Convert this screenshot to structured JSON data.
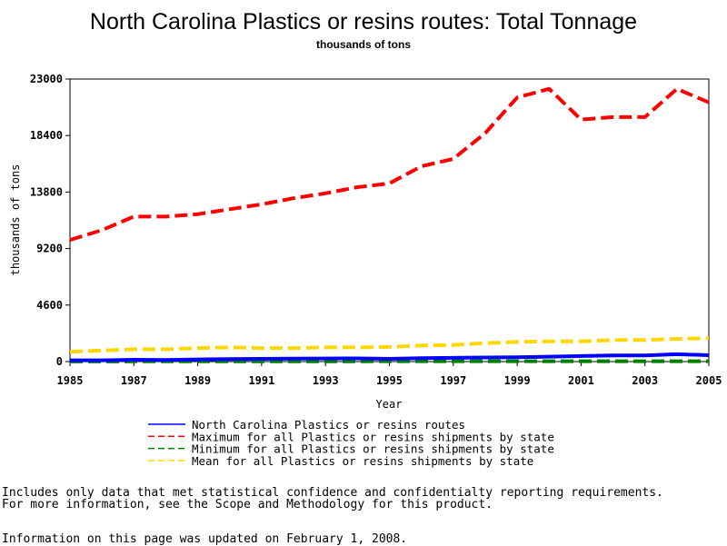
{
  "chart_data": {
    "type": "line",
    "title": "North Carolina Plastics or resins routes: Total Tonnage",
    "subtitle": "thousands of tons",
    "xlabel": "Year",
    "ylabel": "thousands of tons",
    "x": [
      1985,
      1986,
      1987,
      1988,
      1989,
      1990,
      1991,
      1992,
      1993,
      1994,
      1995,
      1996,
      1997,
      1998,
      1999,
      2000,
      2001,
      2002,
      2003,
      2004,
      2005
    ],
    "xticks": [
      "1985",
      "1987",
      "1989",
      "1991",
      "1993",
      "1995",
      "1997",
      "1999",
      "2001",
      "2003",
      "2005"
    ],
    "yticks": [
      "0",
      "4600",
      "9200",
      "13800",
      "18400",
      "23000"
    ],
    "xlim": [
      1985,
      2005
    ],
    "ylim": [
      0,
      23000
    ],
    "grid": false,
    "series": [
      {
        "name": "North Carolina Plastics or resins routes",
        "color": "#0000ff",
        "dash": "solid",
        "values": [
          100,
          100,
          150,
          130,
          180,
          200,
          220,
          240,
          250,
          260,
          220,
          280,
          300,
          330,
          350,
          400,
          450,
          500,
          500,
          600,
          520
        ]
      },
      {
        "name": "Maximum for all Plastics or resins shipments by state",
        "color": "#ff0000",
        "dash": "dashed",
        "values": [
          9900,
          10700,
          11800,
          11800,
          12000,
          12400,
          12800,
          13300,
          13700,
          14200,
          14500,
          15900,
          16500,
          18600,
          21500,
          22200,
          19700,
          19900,
          19900,
          22200,
          21100
        ]
      },
      {
        "name": "Minimum for all Plastics or resins shipments by state",
        "color": "#008000",
        "dash": "dashed",
        "values": [
          10,
          10,
          15,
          15,
          20,
          20,
          20,
          25,
          25,
          25,
          30,
          30,
          30,
          30,
          30,
          30,
          30,
          30,
          30,
          30,
          30
        ]
      },
      {
        "name": "Mean for all Plastics or resins shipments by state",
        "color": "#ffd700",
        "dash": "dashed",
        "values": [
          800,
          900,
          1000,
          1000,
          1100,
          1150,
          1100,
          1100,
          1150,
          1150,
          1200,
          1300,
          1350,
          1500,
          1600,
          1650,
          1650,
          1750,
          1750,
          1850,
          1900
        ]
      }
    ]
  },
  "footnotes": {
    "line1": "Includes only data that met statistical confidence and confidentialty reporting requirements.",
    "line2": "For more information, see the Scope and Methodology for this product.",
    "line3": "Information on this page was updated on February 1, 2008."
  }
}
